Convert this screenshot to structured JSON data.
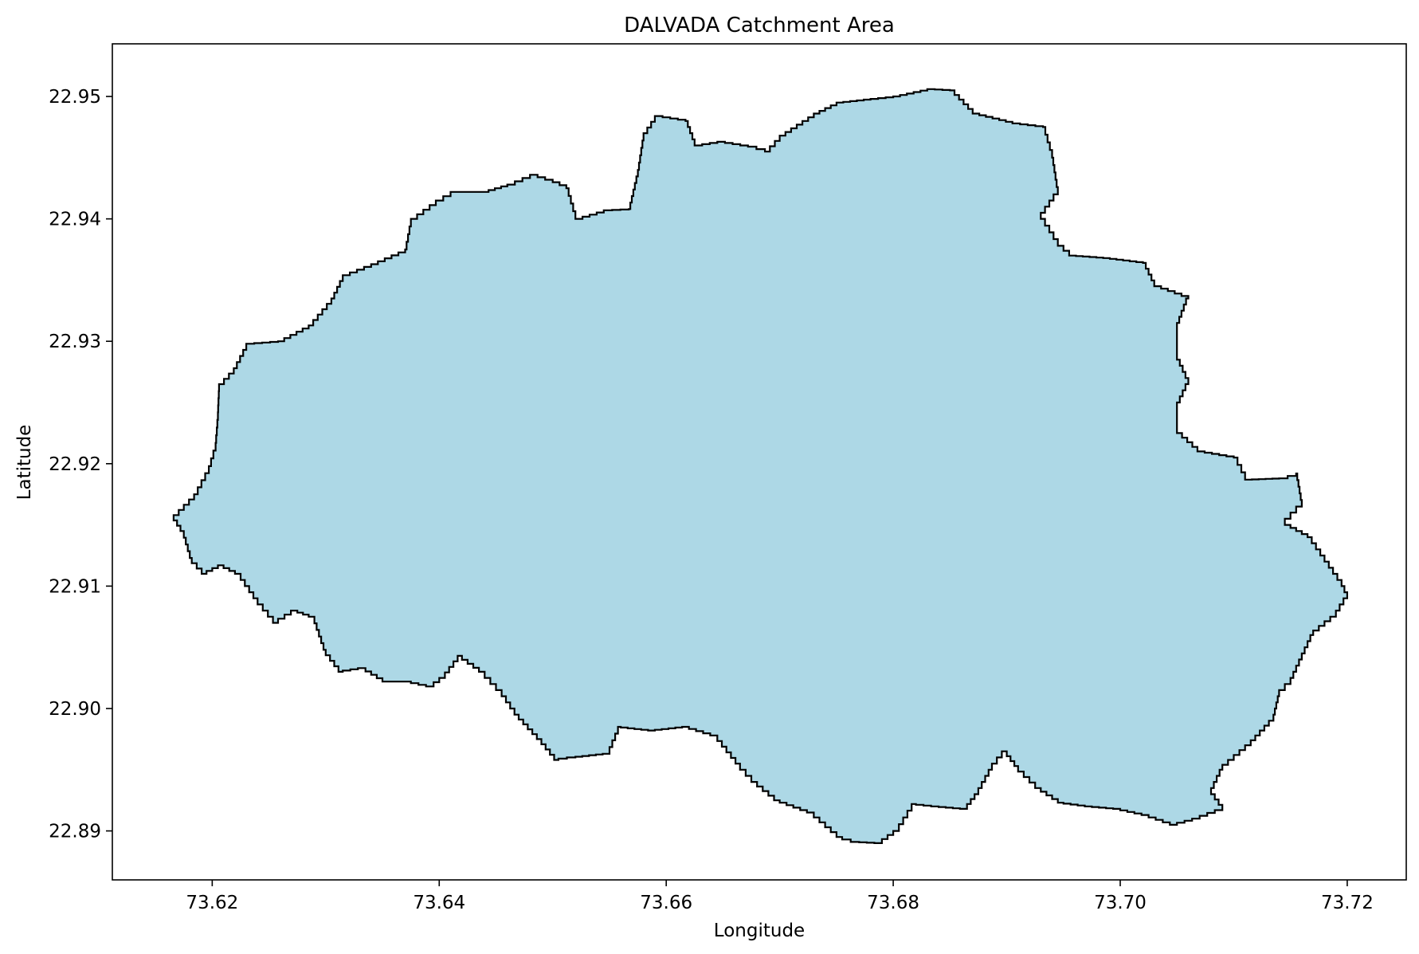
{
  "chart_data": {
    "type": "area",
    "title": "DALVADA Catchment Area",
    "xlabel": "Longitude",
    "ylabel": "Latitude",
    "xlim": [
      73.6112,
      73.7252
    ],
    "ylim": [
      22.886,
      22.9543
    ],
    "xticks": [
      "73.62",
      "73.64",
      "73.66",
      "73.68",
      "73.70",
      "73.72"
    ],
    "yticks": [
      "22.89",
      "22.90",
      "22.91",
      "22.92",
      "22.93",
      "22.94",
      "22.95"
    ],
    "grid": false,
    "legend": "none",
    "fill_color": "#add8e6",
    "edge_color": "#000000",
    "boundary": [
      [
        73.6166,
        22.9158
      ],
      [
        73.6184,
        22.9175
      ],
      [
        73.6197,
        22.9198
      ],
      [
        73.6203,
        22.9217
      ],
      [
        73.6205,
        22.9242
      ],
      [
        73.6206,
        22.9265
      ],
      [
        73.6219,
        22.9278
      ],
      [
        73.623,
        22.9298
      ],
      [
        73.6258,
        22.93
      ],
      [
        73.6285,
        22.9313
      ],
      [
        73.6305,
        22.9335
      ],
      [
        73.6315,
        22.9354
      ],
      [
        73.634,
        22.9363
      ],
      [
        73.637,
        22.9375
      ],
      [
        73.6375,
        22.94
      ],
      [
        73.6397,
        22.9415
      ],
      [
        73.641,
        22.9422
      ],
      [
        73.6438,
        22.9422
      ],
      [
        73.646,
        22.9428
      ],
      [
        73.648,
        22.9436
      ],
      [
        73.65,
        22.943
      ],
      [
        73.6512,
        22.9425
      ],
      [
        73.652,
        22.94
      ],
      [
        73.6545,
        22.9407
      ],
      [
        73.6567,
        22.9408
      ],
      [
        73.6575,
        22.944
      ],
      [
        73.658,
        22.947
      ],
      [
        73.659,
        22.9484
      ],
      [
        73.6617,
        22.948
      ],
      [
        73.6625,
        22.946
      ],
      [
        73.6645,
        22.9463
      ],
      [
        73.6672,
        22.9459
      ],
      [
        73.6687,
        22.9455
      ],
      [
        73.67,
        22.9468
      ],
      [
        73.673,
        22.9486
      ],
      [
        73.675,
        22.9495
      ],
      [
        73.678,
        22.9498
      ],
      [
        73.68,
        22.95
      ],
      [
        73.683,
        22.9506
      ],
      [
        73.685,
        22.9505
      ],
      [
        73.687,
        22.9486
      ],
      [
        73.6905,
        22.9478
      ],
      [
        73.6932,
        22.9475
      ],
      [
        73.694,
        22.945
      ],
      [
        73.6945,
        22.942
      ],
      [
        73.693,
        22.94
      ],
      [
        73.6945,
        22.9378
      ],
      [
        73.6955,
        22.937
      ],
      [
        73.6985,
        22.9368
      ],
      [
        73.702,
        22.9364
      ],
      [
        73.703,
        22.9345
      ],
      [
        73.706,
        22.9335
      ],
      [
        73.705,
        22.931
      ],
      [
        73.705,
        22.9285
      ],
      [
        73.706,
        22.9265
      ],
      [
        73.705,
        22.9245
      ],
      [
        73.705,
        22.9225
      ],
      [
        73.7068,
        22.921
      ],
      [
        73.71,
        22.9205
      ],
      [
        73.711,
        22.9187
      ],
      [
        73.714,
        22.9188
      ],
      [
        73.7155,
        22.9192
      ],
      [
        73.716,
        22.9165
      ],
      [
        73.7145,
        22.915
      ],
      [
        73.7165,
        22.914
      ],
      [
        73.718,
        22.912
      ],
      [
        73.7195,
        22.91
      ],
      [
        73.72,
        22.909
      ],
      [
        73.719,
        22.9075
      ],
      [
        73.717,
        22.906
      ],
      [
        73.716,
        22.904
      ],
      [
        73.715,
        22.902
      ],
      [
        73.714,
        22.901
      ],
      [
        73.7135,
        22.899
      ],
      [
        73.7115,
        22.897
      ],
      [
        73.709,
        22.895
      ],
      [
        73.708,
        22.893
      ],
      [
        73.709,
        22.8917
      ],
      [
        73.707,
        22.891
      ],
      [
        73.705,
        22.8905
      ],
      [
        73.7025,
        22.8913
      ],
      [
        73.7,
        22.8918
      ],
      [
        73.6975,
        22.892
      ],
      [
        73.695,
        22.8923
      ],
      [
        73.693,
        22.8935
      ],
      [
        73.691,
        22.8953
      ],
      [
        73.69,
        22.8965
      ],
      [
        73.6887,
        22.895
      ],
      [
        73.6875,
        22.893
      ],
      [
        73.6865,
        22.8918
      ],
      [
        73.684,
        22.892
      ],
      [
        73.682,
        22.8922
      ],
      [
        73.6805,
        22.89
      ],
      [
        73.679,
        22.889
      ],
      [
        73.677,
        22.8891
      ],
      [
        73.6755,
        22.8895
      ],
      [
        73.673,
        22.8915
      ],
      [
        73.67,
        22.8925
      ],
      [
        73.668,
        22.894
      ],
      [
        73.6665,
        22.8955
      ],
      [
        73.6645,
        22.8978
      ],
      [
        73.662,
        22.8985
      ],
      [
        73.659,
        22.8982
      ],
      [
        73.656,
        22.8985
      ],
      [
        73.655,
        22.8963
      ],
      [
        73.652,
        22.896
      ],
      [
        73.6505,
        22.8958
      ],
      [
        73.649,
        22.8975
      ],
      [
        73.647,
        22.8995
      ],
      [
        73.6455,
        22.9015
      ],
      [
        73.644,
        22.903
      ],
      [
        73.642,
        22.9043
      ],
      [
        73.6405,
        22.9025
      ],
      [
        73.6395,
        22.9018
      ],
      [
        73.6375,
        22.9022
      ],
      [
        73.6355,
        22.9022
      ],
      [
        73.6335,
        22.9033
      ],
      [
        73.6315,
        22.903
      ],
      [
        73.63,
        22.9048
      ],
      [
        73.629,
        22.9075
      ],
      [
        73.6275,
        22.908
      ],
      [
        73.6258,
        22.907
      ],
      [
        73.624,
        22.909
      ],
      [
        73.6225,
        22.911
      ],
      [
        73.621,
        22.9117
      ],
      [
        73.6195,
        22.911
      ],
      [
        73.6182,
        22.9123
      ],
      [
        73.6175,
        22.9145
      ],
      [
        73.6166,
        22.9158
      ]
    ]
  }
}
